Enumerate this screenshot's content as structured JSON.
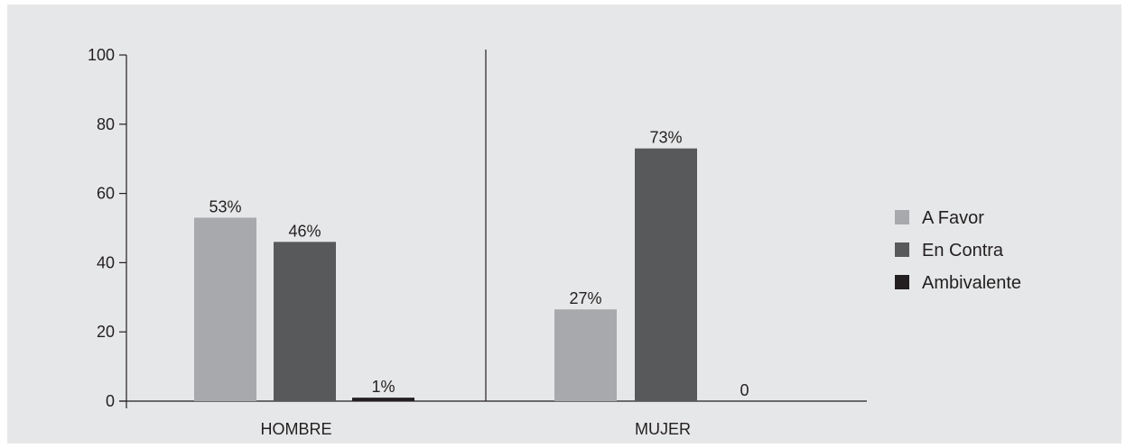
{
  "chart_data": {
    "type": "bar",
    "categories": [
      "HOMBRE",
      "MUJER"
    ],
    "series": [
      {
        "name": "A Favor",
        "values": [
          53,
          26.5
        ],
        "labels": [
          "53%",
          "27%"
        ],
        "color": "#a7a9ac"
      },
      {
        "name": "En Contra",
        "values": [
          46,
          73
        ],
        "labels": [
          "46%",
          "73%"
        ],
        "color": "#58595b"
      },
      {
        "name": "Ambivalente",
        "values": [
          1,
          0
        ],
        "labels": [
          "1%",
          "0"
        ],
        "color": "#231f20"
      }
    ],
    "ylim": [
      0,
      100
    ],
    "yticks": [
      "0",
      "20",
      "40",
      "60",
      "80",
      "100"
    ],
    "grid": false,
    "legend_position": "right",
    "background": "#e6e7e8"
  }
}
